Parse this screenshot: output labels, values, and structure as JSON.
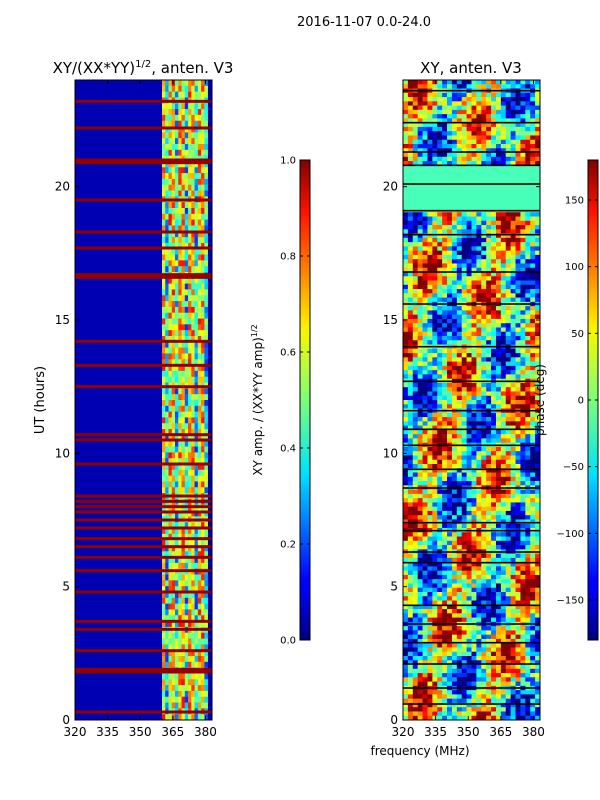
{
  "figure": {
    "suptitle": "2016-11-07 0.0-24.0",
    "xlabel": "frequency (MHz)"
  },
  "chart_data": [
    {
      "type": "heatmap",
      "title_main": "XY/(XX*YY)",
      "title_sup": "1/2",
      "title_tail": ", anten. V3",
      "xlabel": "",
      "ylabel": "UT (hours)",
      "xlim": [
        320,
        383
      ],
      "ylim": [
        0,
        24
      ],
      "xticks": [
        320,
        335,
        350,
        365,
        380
      ],
      "yticks": [
        0,
        5,
        10,
        15,
        20
      ],
      "colorbar": {
        "label_main": "XY amp. / (XX*YY amp)",
        "label_sup": "1/2",
        "range": [
          0.0,
          1.0
        ],
        "ticks": [
          "0.0",
          "0.2",
          "0.4",
          "0.6",
          "0.8",
          "1.0"
        ],
        "tick_values": [
          0.0,
          0.2,
          0.4,
          0.6,
          0.8,
          1.0
        ]
      },
      "description_values": {
        "background_level": 0.05,
        "high_band_mhz": [
          360,
          381
        ],
        "high_band_level": 0.6,
        "saturated_row_hours": [
          0.3,
          1.8,
          1.9,
          2.6,
          3.4,
          3.7,
          4.8,
          5.6,
          6.1,
          6.5,
          6.8,
          7.2,
          7.5,
          7.8,
          8.0,
          8.2,
          8.4,
          9.6,
          10.5,
          10.7,
          12.5,
          13.3,
          14.2,
          16.6,
          16.7,
          17.7,
          18.3,
          19.5,
          20.9,
          21.0,
          22.2,
          23.2
        ]
      }
    },
    {
      "type": "heatmap",
      "title": "XY, anten. V3",
      "xlabel": "",
      "ylabel": "",
      "xlim": [
        320,
        383
      ],
      "ylim": [
        0,
        24
      ],
      "xticks": [
        320,
        335,
        350,
        365,
        380
      ],
      "yticks": [
        0,
        5,
        10,
        15,
        20
      ],
      "colorbar": {
        "label": "phase (deg)",
        "range": [
          -180,
          180
        ],
        "ticks": [
          "−150",
          "−100",
          "−50",
          "0",
          "50",
          "100",
          "150"
        ],
        "tick_values": [
          -150,
          -100,
          -50,
          0,
          50,
          100,
          150
        ]
      },
      "description_values": {
        "flagged_row_hours": [
          0.6,
          1.2,
          2.1,
          2.9,
          3.6,
          4.3,
          5.9,
          6.3,
          7.1,
          7.4,
          8.7,
          9.4,
          10.3,
          10.9,
          11.6,
          12.7,
          14.0,
          15.6,
          16.8,
          18.2,
          19.1,
          20.1,
          20.8,
          21.3,
          22.4,
          23.6
        ],
        "constant_phase_band_hours": [
          19.0,
          20.8
        ],
        "constant_phase_value": -20
      }
    }
  ]
}
